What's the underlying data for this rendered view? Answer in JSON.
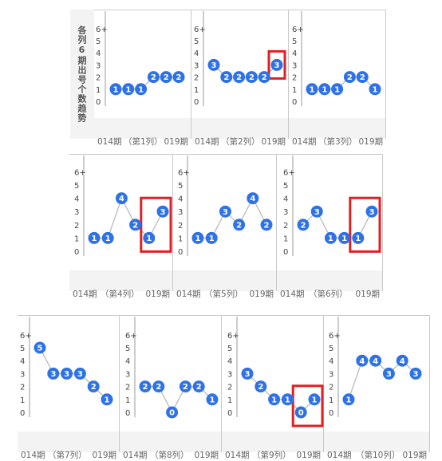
{
  "side_label": "各列6期出号个数趋势",
  "footer_start": "014期",
  "footer_end": "019期",
  "y_ticks": [
    "0",
    "1",
    "2",
    "3",
    "4",
    "5",
    "6+"
  ],
  "colors": {
    "dot": "#2f72e6",
    "line": "#b5b5b5",
    "highlight": "#e02020"
  },
  "chart_data": [
    {
      "type": "line",
      "name": "（第1列）",
      "values": [
        1,
        1,
        1,
        2,
        2,
        2
      ],
      "ylim": [
        0,
        6
      ]
    },
    {
      "type": "line",
      "name": "（第2列）",
      "values": [
        3,
        2,
        2,
        2,
        2,
        3
      ],
      "ylim": [
        0,
        6
      ]
    },
    {
      "type": "line",
      "name": "（第3列）",
      "values": [
        1,
        1,
        1,
        2,
        2,
        1
      ],
      "ylim": [
        0,
        6
      ]
    },
    {
      "type": "line",
      "name": "（第4列）",
      "values": [
        1,
        1,
        4,
        2,
        1,
        3
      ],
      "ylim": [
        0,
        6
      ]
    },
    {
      "type": "line",
      "name": "（第5列）",
      "values": [
        1,
        1,
        3,
        2,
        4,
        2
      ],
      "ylim": [
        0,
        6
      ]
    },
    {
      "type": "line",
      "name": "（第6列）",
      "values": [
        2,
        3,
        1,
        1,
        1,
        3
      ],
      "ylim": [
        0,
        6
      ]
    },
    {
      "type": "line",
      "name": "（第7列）",
      "values": [
        5,
        3,
        3,
        3,
        2,
        1
      ],
      "ylim": [
        0,
        6
      ]
    },
    {
      "type": "line",
      "name": "（第8列）",
      "values": [
        2,
        2,
        0,
        2,
        2,
        1
      ],
      "ylim": [
        0,
        6
      ]
    },
    {
      "type": "line",
      "name": "（第9列）",
      "values": [
        3,
        2,
        1,
        1,
        0,
        1
      ],
      "ylim": [
        0,
        6
      ]
    },
    {
      "type": "line",
      "name": "（第10列）",
      "values": [
        1,
        4,
        4,
        3,
        4,
        3
      ],
      "ylim": [
        0,
        6
      ]
    }
  ]
}
